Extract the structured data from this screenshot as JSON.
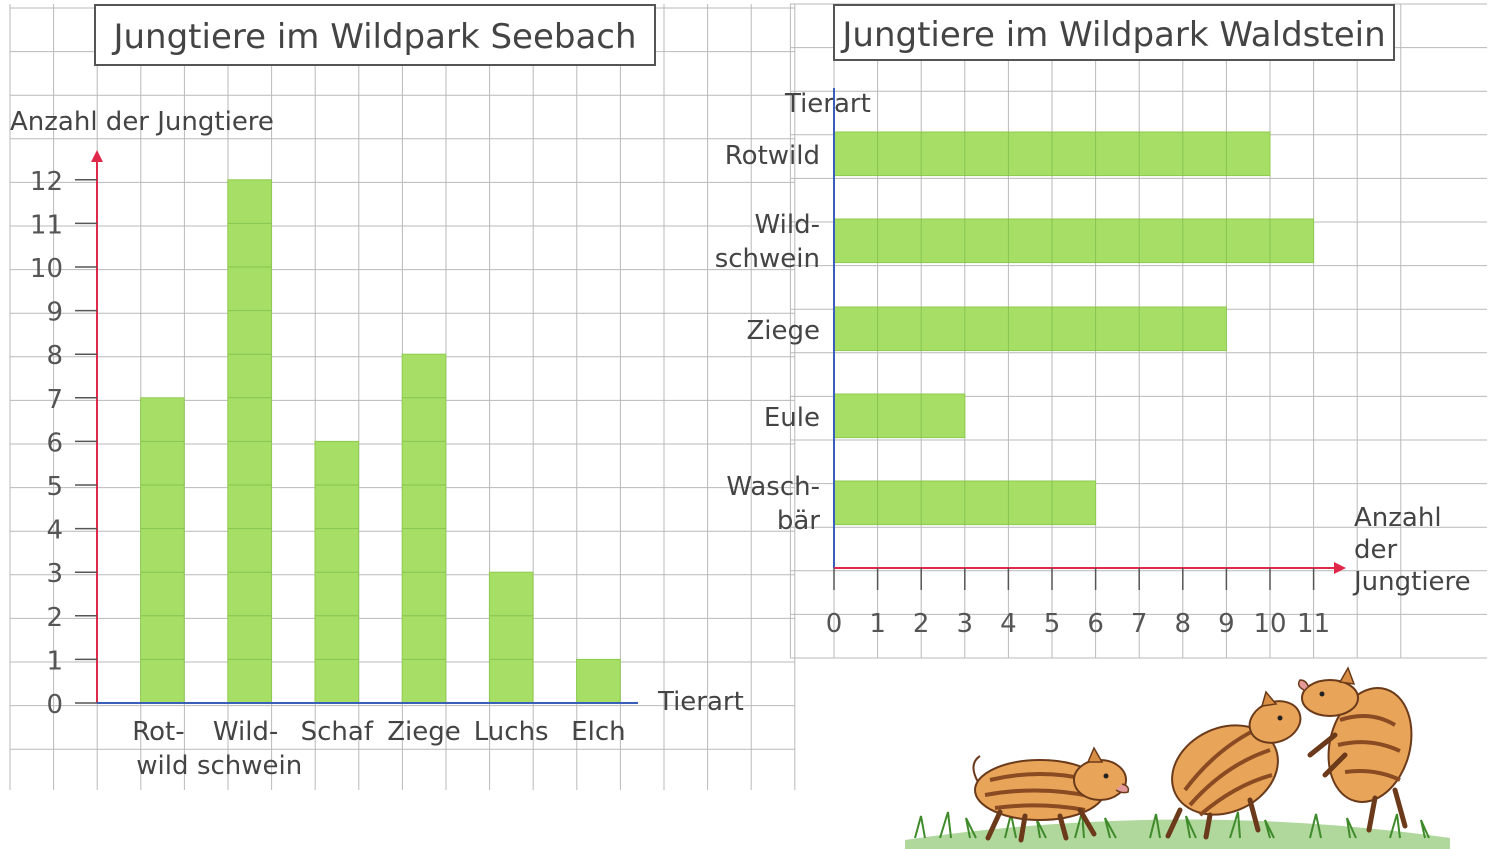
{
  "chart_data": [
    {
      "type": "bar",
      "orientation": "vertical",
      "title": "Jungtiere im Wildpark Seebach",
      "ylabel": "Anzahl der Jungtiere",
      "xlabel": "Tierart",
      "categories": [
        [
          "Rot-",
          "wild"
        ],
        [
          "Wild-",
          "schwein"
        ],
        [
          "Schaf"
        ],
        [
          "Ziege"
        ],
        [
          "Luchs"
        ],
        [
          "Elch"
        ]
      ],
      "values": [
        7,
        12,
        6,
        8,
        3,
        1
      ],
      "ylim": [
        0,
        12
      ],
      "yticks": [
        "0",
        "1",
        "2",
        "3",
        "4",
        "5",
        "6",
        "7",
        "8",
        "9",
        "10",
        "11",
        "12"
      ],
      "grid": true,
      "colors": {
        "bar": "#a7df66",
        "axis": "#e0284a"
      }
    },
    {
      "type": "bar",
      "orientation": "horizontal",
      "title": "Jungtiere im Wildpark Waldstein",
      "ylabel": "Tierart",
      "xlabel": [
        "Anzahl",
        "der",
        "Jungtiere"
      ],
      "categories": [
        [
          "Rotwild"
        ],
        [
          "Wild-",
          "schwein"
        ],
        [
          "Ziege"
        ],
        [
          "Eule"
        ],
        [
          "Wasch-",
          "bär"
        ]
      ],
      "values": [
        10,
        11,
        9,
        3,
        6
      ],
      "xlim": [
        0,
        11
      ],
      "xticks": [
        "0",
        "1",
        "2",
        "3",
        "4",
        "5",
        "6",
        "7",
        "8",
        "9",
        "10",
        "11"
      ],
      "grid": true,
      "colors": {
        "bar": "#a7df66",
        "value_axis": "#e0284a",
        "category_axis": "#3a5fb8"
      }
    }
  ],
  "illustration": {
    "name": "wild-boar-piglets",
    "colors": {
      "body": "#e8a55a",
      "stripes": "#8a4a22",
      "grass": "#4e9a32"
    }
  }
}
